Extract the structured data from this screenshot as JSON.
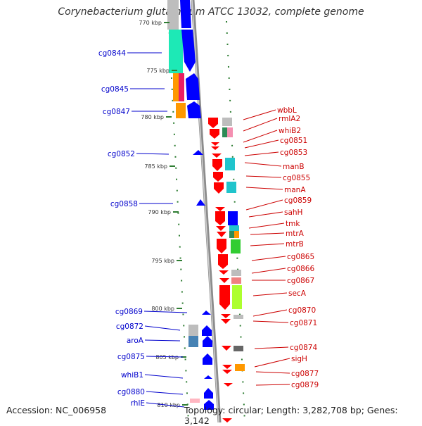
{
  "title": "Corynebacterium glutamicum ATCC 13032, complete genome",
  "footer": {
    "accession": "Accession: NC_006958",
    "summary": "Topology: circular; Length: 3,282,708 bp; Genes: 3,142"
  },
  "colors": {
    "backbone": "#8c8c8c",
    "forward_genes": "#0000ff",
    "reverse_genes": "#ff0000",
    "left_labels": "#0000cc",
    "right_labels": "#cc0000",
    "ticks": "#2e7d32"
  },
  "ticks": [
    "770 kbp",
    "775 kbp",
    "780 kbp",
    "785 kbp",
    "790 kbp",
    "795 kbp",
    "800 kbp",
    "805 kbp",
    "810 kbp"
  ],
  "left_labels": [
    "cg0844",
    "cg0845",
    "cg0847",
    "cg0852",
    "cg0858",
    "cg0869",
    "cg0872",
    "aroA",
    "cg0875",
    "whiB1",
    "cg0880",
    "rhlE"
  ],
  "right_labels": [
    "wbbL",
    "rmlA2",
    "whiB2",
    "cg0851",
    "cg0853",
    "manB",
    "cg0855",
    "manA",
    "cg0859",
    "sahH",
    "tmk",
    "mtrA",
    "mtrB",
    "cg0865",
    "cg0866",
    "cg0867",
    "secA",
    "cg0870",
    "cg0871",
    "cg0874",
    "sigH",
    "cg0877",
    "cg0879"
  ]
}
